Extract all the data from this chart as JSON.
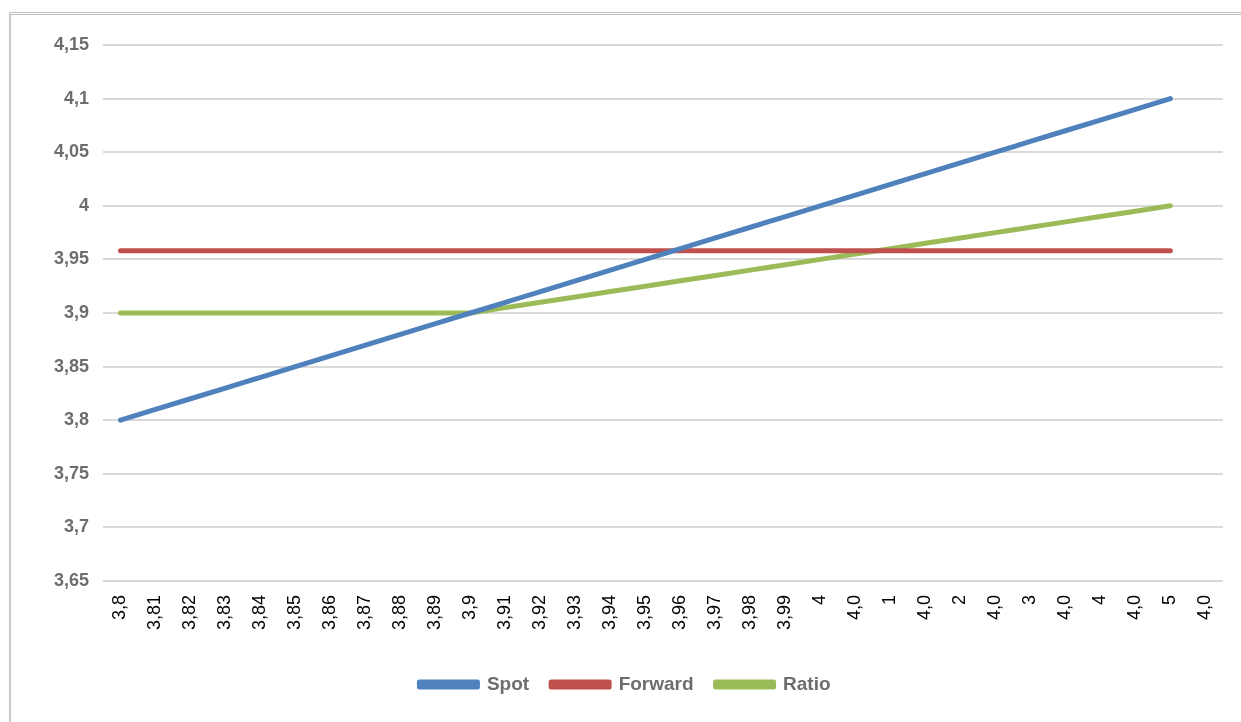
{
  "chart_data": {
    "type": "line",
    "categories": [
      "3,8",
      "3,81",
      "3,82",
      "3,83",
      "3,84",
      "3,85",
      "3,86",
      "3,87",
      "3,88",
      "3,89",
      "3,9",
      "3,91",
      "3,92",
      "3,93",
      "3,94",
      "3,95",
      "3,96",
      "3,97",
      "3,98",
      "3,99",
      "4",
      "4,0",
      "1",
      "4,0",
      "2",
      "4,0",
      "3",
      "4,0",
      "4",
      "4,0",
      "5",
      "4,0"
    ],
    "series": [
      {
        "name": "Spot",
        "color": "#4f81bd",
        "values": [
          3.8,
          3.81,
          3.82,
          3.83,
          3.84,
          3.85,
          3.86,
          3.87,
          3.88,
          3.89,
          3.9,
          3.91,
          3.92,
          3.93,
          3.94,
          3.95,
          3.96,
          3.97,
          3.98,
          3.99,
          4.0,
          4.01,
          4.02,
          4.03,
          4.04,
          4.05,
          4.06,
          4.07,
          4.08,
          4.09,
          4.1,
          null
        ]
      },
      {
        "name": "Forward",
        "color": "#c0504d",
        "values": [
          3.958,
          3.958,
          3.958,
          3.958,
          3.958,
          3.958,
          3.958,
          3.958,
          3.958,
          3.958,
          3.958,
          3.958,
          3.958,
          3.958,
          3.958,
          3.958,
          3.958,
          3.958,
          3.958,
          3.958,
          3.958,
          3.958,
          3.958,
          3.958,
          3.958,
          3.958,
          3.958,
          3.958,
          3.958,
          3.958,
          3.958,
          null
        ]
      },
      {
        "name": "Ratio",
        "color": "#9bbb59",
        "values": [
          3.9,
          3.9,
          3.9,
          3.9,
          3.9,
          3.9,
          3.9,
          3.9,
          3.9,
          3.9,
          3.9,
          3.905,
          3.91,
          3.915,
          3.92,
          3.925,
          3.93,
          3.935,
          3.94,
          3.945,
          3.95,
          3.955,
          3.96,
          3.965,
          3.97,
          3.975,
          3.98,
          3.985,
          3.99,
          3.995,
          4.0,
          null
        ]
      }
    ],
    "ylim": [
      3.65,
      4.15
    ],
    "yticks": [
      {
        "value": 3.65,
        "label": "3,65"
      },
      {
        "value": 3.7,
        "label": "3,7"
      },
      {
        "value": 3.75,
        "label": "3,75"
      },
      {
        "value": 3.8,
        "label": "3,8"
      },
      {
        "value": 3.85,
        "label": "3,85"
      },
      {
        "value": 3.9,
        "label": "3,9"
      },
      {
        "value": 3.95,
        "label": "3,95"
      },
      4,
      {
        "value": 4.05,
        "label": "4,05"
      },
      {
        "value": 4.1,
        "label": "4,1"
      },
      {
        "value": 4.15,
        "label": "4,15"
      }
    ],
    "grid": "y",
    "legend": "bottom",
    "marker": "none",
    "line_style": "solid"
  }
}
